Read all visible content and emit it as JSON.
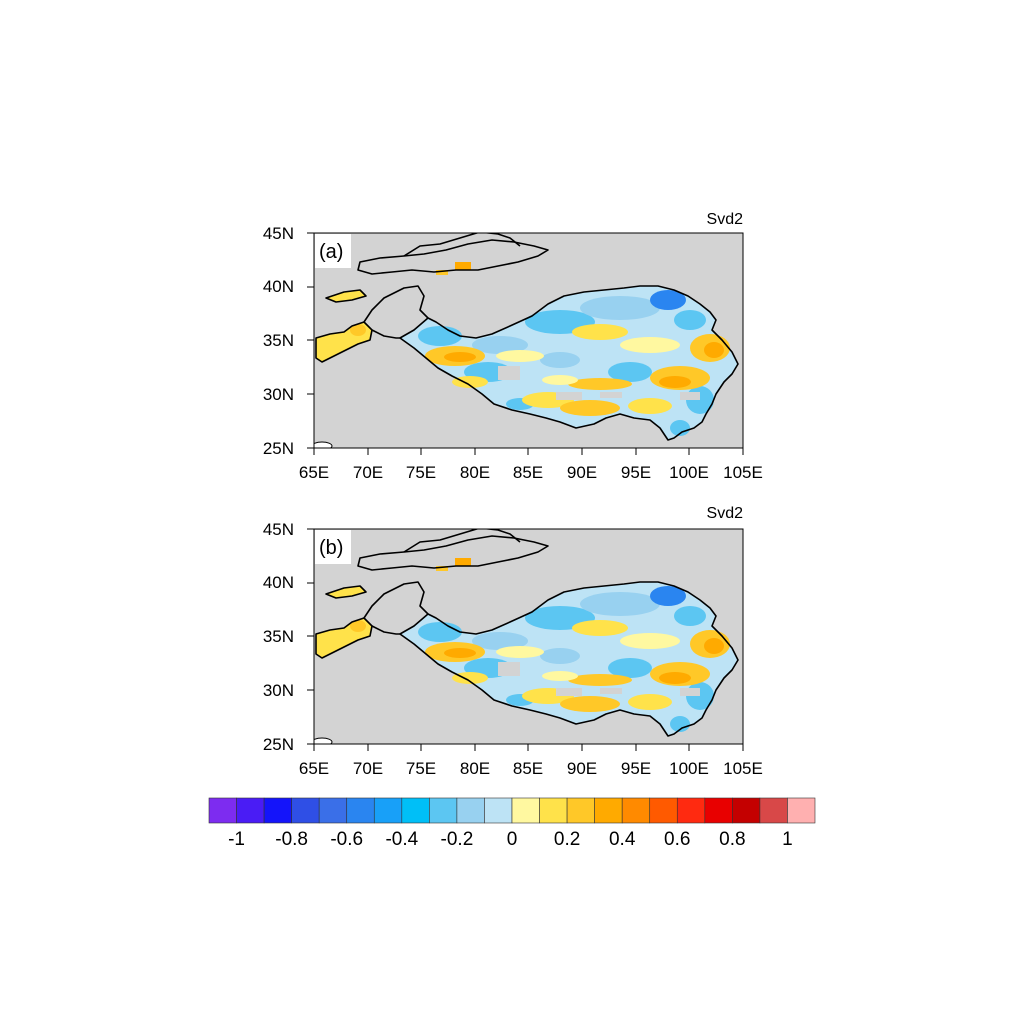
{
  "panels": [
    {
      "label": "(a)",
      "title": "Svd2"
    },
    {
      "label": "(b)",
      "title": "Svd2"
    }
  ],
  "lat_ticks": [
    "25N",
    "30N",
    "35N",
    "40N",
    "45N"
  ],
  "lon_ticks": [
    "65E",
    "70E",
    "75E",
    "80E",
    "85E",
    "90E",
    "95E",
    "100E",
    "105E"
  ],
  "colorbar": {
    "colors": [
      "#7d2cf0",
      "#4a1cf5",
      "#1414fa",
      "#2f4fe6",
      "#3a6fe8",
      "#2a85f0",
      "#18a0f8",
      "#00bff7",
      "#5cc6f2",
      "#98d1f0",
      "#bde3f5",
      "#fff8a0",
      "#ffe24a",
      "#ffc828",
      "#ffaa00",
      "#ff8a00",
      "#ff5a00",
      "#ff2a10",
      "#e80000",
      "#c40000",
      "#d84848",
      "#ffb0b0"
    ],
    "labels": [
      "-1",
      "-0.8",
      "-0.6",
      "-0.4",
      "-0.2",
      "0",
      "0.2",
      "0.4",
      "0.6",
      "0.8",
      "1"
    ]
  },
  "colors": {
    "land": "#d3d3d3",
    "outline": "#000000"
  }
}
